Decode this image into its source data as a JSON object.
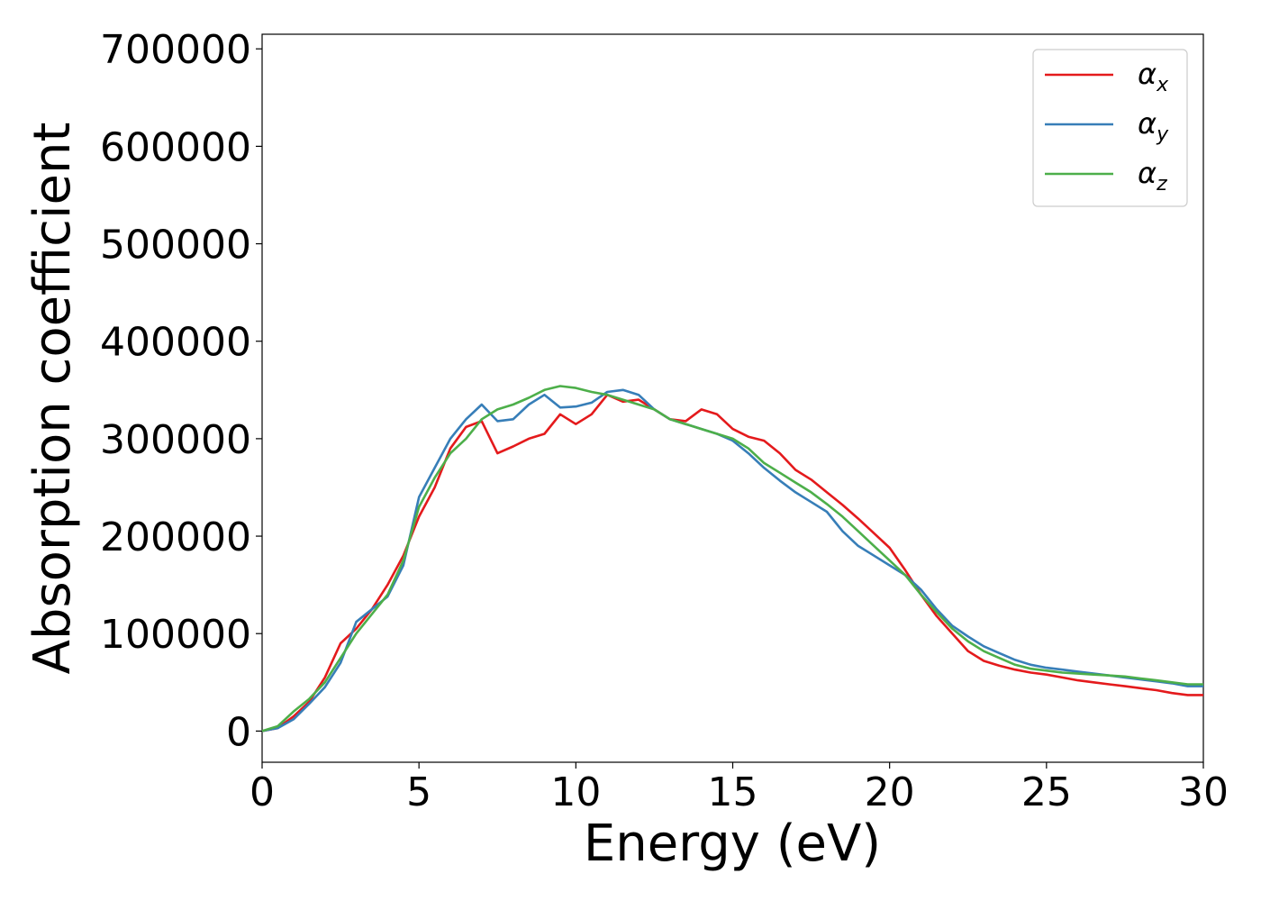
{
  "chart_data": {
    "type": "line",
    "xlabel": "Energy (eV)",
    "ylabel": "Absorption coefficient",
    "xlim": [
      0,
      30
    ],
    "ylim": [
      -32000,
      715000
    ],
    "xticks": [
      0,
      5,
      10,
      15,
      20,
      25,
      30
    ],
    "yticks": [
      0,
      100000,
      200000,
      300000,
      400000,
      500000,
      600000,
      700000
    ],
    "grid": false,
    "legend_position": "top-right",
    "x": [
      0,
      0.5,
      1,
      1.5,
      2,
      2.5,
      3,
      3.5,
      4,
      4.5,
      5,
      5.5,
      6,
      6.5,
      7,
      7.5,
      8,
      8.5,
      9,
      9.5,
      10,
      10.5,
      11,
      11.5,
      12,
      12.5,
      13,
      13.5,
      14,
      14.5,
      15,
      15.5,
      16,
      16.5,
      17,
      17.5,
      18,
      18.5,
      19,
      19.5,
      20,
      20.5,
      21,
      21.5,
      22,
      22.5,
      23,
      23.5,
      24,
      24.5,
      25,
      25.5,
      26,
      26.5,
      27,
      27.5,
      28,
      28.5,
      29,
      29.5,
      30
    ],
    "series": [
      {
        "name": "α",
        "subscript": "x",
        "color": "#e41a1c",
        "values": [
          0,
          3000,
          15000,
          30000,
          55000,
          90000,
          105000,
          125000,
          150000,
          180000,
          220000,
          250000,
          290000,
          312000,
          318000,
          285000,
          292000,
          300000,
          305000,
          325000,
          315000,
          325000,
          345000,
          338000,
          340000,
          330000,
          320000,
          318000,
          330000,
          325000,
          310000,
          302000,
          298000,
          285000,
          268000,
          258000,
          245000,
          232000,
          218000,
          203000,
          188000,
          165000,
          140000,
          118000,
          100000,
          82000,
          72000,
          67000,
          63000,
          60000,
          58000,
          55000,
          52000,
          50000,
          48000,
          46000,
          44000,
          42000,
          39000,
          37000,
          37000
        ]
      },
      {
        "name": "α",
        "subscript": "y",
        "color": "#377eb8",
        "values": [
          0,
          3000,
          12000,
          28000,
          45000,
          70000,
          112000,
          125000,
          138000,
          170000,
          240000,
          270000,
          300000,
          320000,
          335000,
          318000,
          320000,
          335000,
          345000,
          332000,
          333000,
          337000,
          348000,
          350000,
          345000,
          330000,
          320000,
          315000,
          310000,
          305000,
          298000,
          285000,
          270000,
          257000,
          245000,
          235000,
          225000,
          205000,
          190000,
          180000,
          170000,
          160000,
          145000,
          125000,
          108000,
          97000,
          87000,
          80000,
          73000,
          68000,
          65000,
          63000,
          61000,
          59000,
          57000,
          55000,
          53000,
          51000,
          49000,
          46000,
          46000
        ]
      },
      {
        "name": "α",
        "subscript": "z",
        "color": "#4daf4a",
        "values": [
          0,
          5000,
          20000,
          33000,
          50000,
          75000,
          100000,
          120000,
          140000,
          175000,
          230000,
          260000,
          285000,
          300000,
          320000,
          330000,
          335000,
          342000,
          350000,
          354000,
          352000,
          348000,
          345000,
          340000,
          335000,
          330000,
          320000,
          315000,
          310000,
          305000,
          300000,
          290000,
          275000,
          265000,
          255000,
          245000,
          233000,
          220000,
          205000,
          190000,
          175000,
          160000,
          140000,
          122000,
          105000,
          92000,
          82000,
          75000,
          68000,
          64000,
          62000,
          60000,
          59000,
          58000,
          57000,
          56000,
          54000,
          52000,
          50000,
          48000,
          48000
        ]
      }
    ]
  }
}
